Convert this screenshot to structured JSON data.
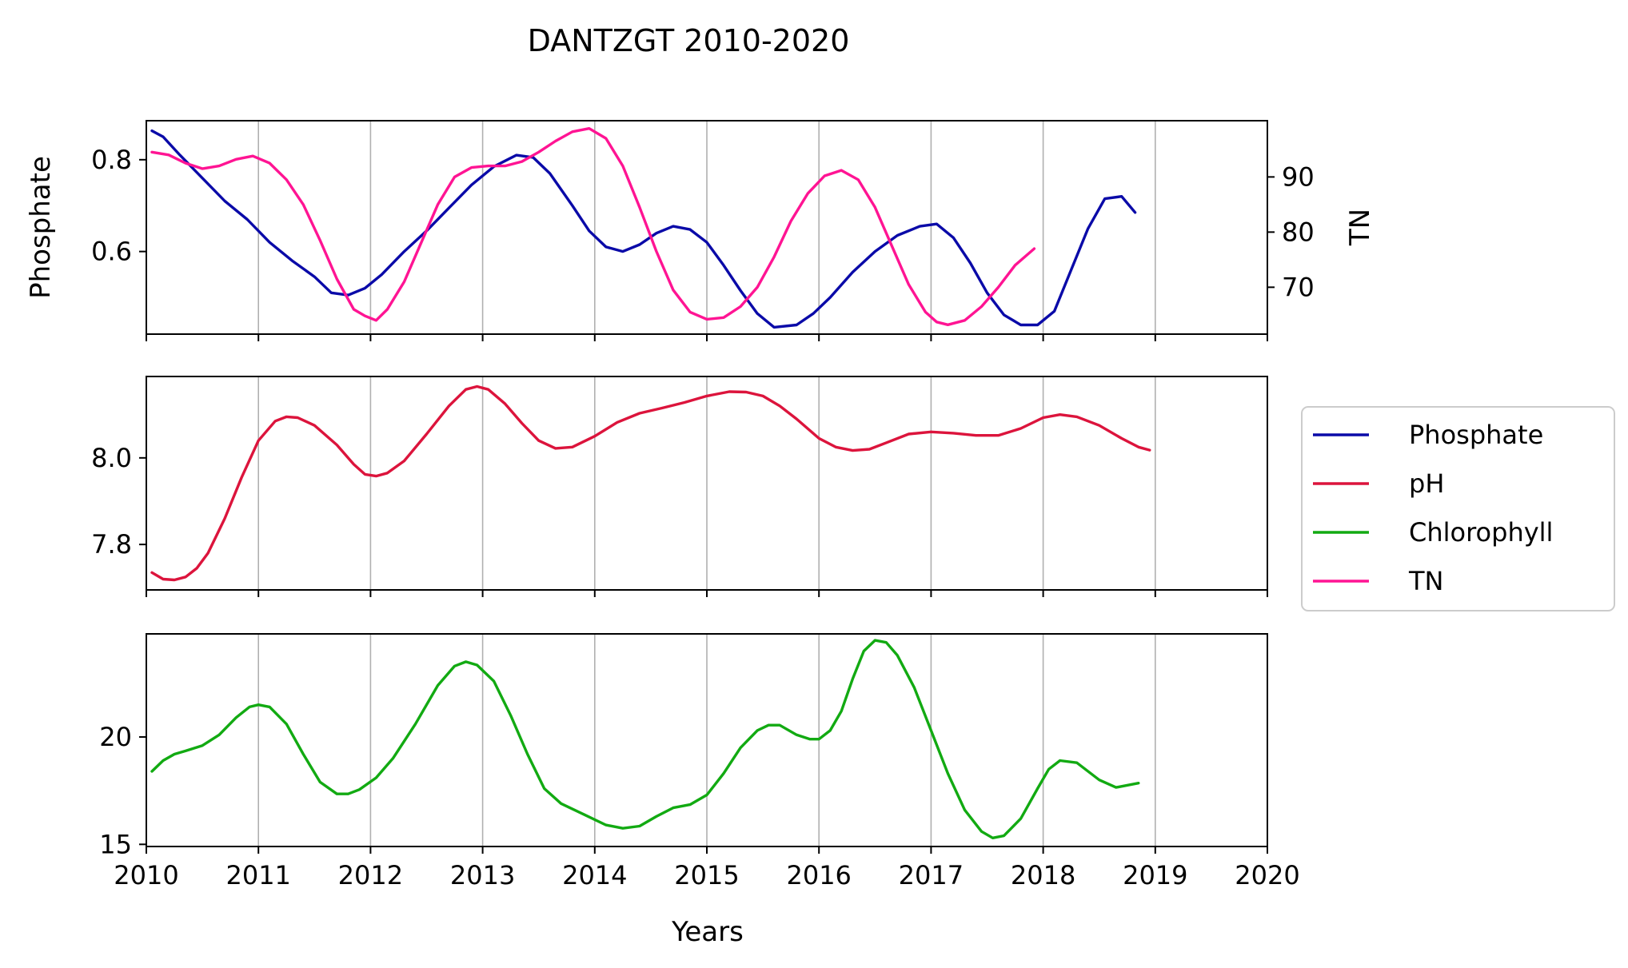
{
  "chart_data": {
    "type": "line",
    "title": "DANTZGT 2010-2020",
    "xlabel": "Years",
    "xlim": [
      2010,
      2020
    ],
    "x_ticks": [
      "2010",
      "2011",
      "2012",
      "2013",
      "2014",
      "2015",
      "2016",
      "2017",
      "2018",
      "2019",
      "2020"
    ],
    "grid": "vertical",
    "legend": {
      "placement": "right",
      "entries": [
        {
          "label": "Phosphate",
          "color": "#0a0aa8"
        },
        {
          "label": "pH",
          "color": "#dc143c"
        },
        {
          "label": "Chlorophyll",
          "color": "#12aa12"
        },
        {
          "label": "TN",
          "color": "#ff1493"
        }
      ]
    },
    "panels": [
      {
        "ylabel": "Phosphate",
        "ylim": [
          0.42,
          0.885
        ],
        "y_ticks": [
          0.6,
          0.8
        ],
        "y_tick_labels": [
          "0.6",
          "0.8"
        ],
        "right_axis": {
          "ylabel": "TN",
          "ylim": [
            61.5,
            100.2
          ],
          "y_ticks": [
            70,
            80,
            90
          ],
          "y_tick_labels": [
            "70",
            "80",
            "90"
          ]
        },
        "series": [
          {
            "name": "Phosphate",
            "axis": "left",
            "color": "#0a0aa8",
            "x": [
              2010.05,
              2010.15,
              2010.3,
              2010.5,
              2010.7,
              2010.9,
              2011.1,
              2011.3,
              2011.5,
              2011.65,
              2011.8,
              2011.95,
              2012.1,
              2012.3,
              2012.5,
              2012.7,
              2012.9,
              2013.1,
              2013.3,
              2013.45,
              2013.6,
              2013.8,
              2013.95,
              2014.1,
              2014.25,
              2014.4,
              2014.55,
              2014.7,
              2014.85,
              2015.0,
              2015.15,
              2015.3,
              2015.45,
              2015.6,
              2015.8,
              2015.95,
              2016.1,
              2016.3,
              2016.5,
              2016.7,
              2016.9,
              2017.05,
              2017.2,
              2017.35,
              2017.5,
              2017.65,
              2017.8,
              2017.95,
              2018.1,
              2018.25,
              2018.4,
              2018.55,
              2018.7,
              2018.82
            ],
            "values": [
              0.863,
              0.85,
              0.81,
              0.76,
              0.71,
              0.67,
              0.62,
              0.58,
              0.545,
              0.51,
              0.505,
              0.52,
              0.55,
              0.6,
              0.645,
              0.695,
              0.745,
              0.785,
              0.81,
              0.805,
              0.77,
              0.7,
              0.645,
              0.61,
              0.6,
              0.615,
              0.64,
              0.655,
              0.648,
              0.62,
              0.57,
              0.515,
              0.465,
              0.435,
              0.44,
              0.465,
              0.5,
              0.555,
              0.6,
              0.635,
              0.655,
              0.66,
              0.63,
              0.575,
              0.51,
              0.462,
              0.44,
              0.44,
              0.47,
              0.56,
              0.65,
              0.715,
              0.72,
              0.685
            ]
          },
          {
            "name": "TN",
            "axis": "right",
            "color": "#ff1493",
            "x": [
              2010.05,
              2010.2,
              2010.35,
              2010.5,
              2010.65,
              2010.8,
              2010.95,
              2011.1,
              2011.25,
              2011.4,
              2011.55,
              2011.7,
              2011.85,
              2011.95,
              2012.05,
              2012.15,
              2012.3,
              2012.45,
              2012.6,
              2012.75,
              2012.9,
              2013.05,
              2013.2,
              2013.35,
              2013.5,
              2013.65,
              2013.8,
              2013.95,
              2014.1,
              2014.25,
              2014.4,
              2014.55,
              2014.7,
              2014.85,
              2015.0,
              2015.15,
              2015.3,
              2015.45,
              2015.6,
              2015.75,
              2015.9,
              2016.05,
              2016.2,
              2016.35,
              2016.5,
              2016.65,
              2016.8,
              2016.95,
              2017.05,
              2017.15,
              2017.3,
              2017.45,
              2017.6,
              2017.75,
              2017.92
            ],
            "values": [
              94.5,
              94.0,
              92.5,
              91.5,
              92.0,
              93.2,
              93.8,
              92.5,
              89.5,
              85.0,
              78.5,
              71.5,
              66.0,
              64.8,
              64.0,
              66.0,
              71.0,
              78.0,
              85.0,
              90.0,
              91.7,
              92.0,
              92.0,
              92.8,
              94.5,
              96.5,
              98.2,
              98.8,
              97.0,
              92.0,
              84.5,
              76.5,
              69.5,
              65.5,
              64.2,
              64.5,
              66.5,
              70.0,
              75.5,
              82.0,
              87.0,
              90.2,
              91.2,
              89.5,
              84.5,
              77.5,
              70.5,
              65.5,
              63.7,
              63.2,
              64.0,
              66.5,
              70.0,
              74.0,
              77.0
            ]
          }
        ]
      },
      {
        "ylabel": "",
        "ylim": [
          7.695,
          8.188
        ],
        "y_ticks": [
          7.8,
          8.0
        ],
        "y_tick_labels": [
          "7.8",
          "8.0"
        ],
        "series": [
          {
            "name": "pH",
            "axis": "left",
            "color": "#dc143c",
            "x": [
              2010.05,
              2010.15,
              2010.25,
              2010.35,
              2010.45,
              2010.55,
              2010.7,
              2010.85,
              2011.0,
              2011.15,
              2011.25,
              2011.35,
              2011.5,
              2011.7,
              2011.85,
              2011.95,
              2012.05,
              2012.15,
              2012.3,
              2012.5,
              2012.7,
              2012.85,
              2012.95,
              2013.05,
              2013.2,
              2013.35,
              2013.5,
              2013.65,
              2013.8,
              2014.0,
              2014.2,
              2014.4,
              2014.6,
              2014.8,
              2015.0,
              2015.2,
              2015.35,
              2015.5,
              2015.65,
              2015.8,
              2016.0,
              2016.15,
              2016.3,
              2016.45,
              2016.6,
              2016.8,
              2017.0,
              2017.2,
              2017.4,
              2017.6,
              2017.8,
              2018.0,
              2018.15,
              2018.3,
              2018.5,
              2018.7,
              2018.85,
              2018.95
            ],
            "values": [
              7.735,
              7.72,
              7.718,
              7.725,
              7.745,
              7.78,
              7.86,
              7.955,
              8.04,
              8.085,
              8.095,
              8.093,
              8.075,
              8.03,
              7.985,
              7.962,
              7.958,
              7.965,
              7.993,
              8.055,
              8.12,
              8.158,
              8.165,
              8.158,
              8.125,
              8.08,
              8.04,
              8.022,
              8.025,
              8.05,
              8.082,
              8.103,
              8.115,
              8.128,
              8.143,
              8.153,
              8.152,
              8.143,
              8.12,
              8.09,
              8.045,
              8.025,
              8.017,
              8.02,
              8.035,
              8.055,
              8.06,
              8.057,
              8.052,
              8.052,
              8.068,
              8.093,
              8.1,
              8.095,
              8.075,
              8.045,
              8.025,
              8.018
            ]
          }
        ]
      },
      {
        "ylabel": "",
        "ylim": [
          14.9,
          24.8
        ],
        "y_ticks": [
          15,
          20
        ],
        "y_tick_labels": [
          "15",
          "20"
        ],
        "series": [
          {
            "name": "Chlorophyll",
            "axis": "left",
            "color": "#12aa12",
            "x": [
              2010.05,
              2010.15,
              2010.25,
              2010.35,
              2010.5,
              2010.65,
              2010.8,
              2010.92,
              2011.0,
              2011.1,
              2011.25,
              2011.4,
              2011.55,
              2011.7,
              2011.8,
              2011.9,
              2012.05,
              2012.2,
              2012.4,
              2012.6,
              2012.75,
              2012.85,
              2012.95,
              2013.1,
              2013.25,
              2013.4,
              2013.55,
              2013.7,
              2013.9,
              2014.1,
              2014.25,
              2014.4,
              2014.55,
              2014.7,
              2014.85,
              2015.0,
              2015.15,
              2015.3,
              2015.45,
              2015.55,
              2015.65,
              2015.8,
              2015.92,
              2016.0,
              2016.1,
              2016.2,
              2016.3,
              2016.4,
              2016.5,
              2016.6,
              2016.7,
              2016.85,
              2017.0,
              2017.15,
              2017.3,
              2017.45,
              2017.55,
              2017.65,
              2017.8,
              2017.95,
              2018.05,
              2018.15,
              2018.3,
              2018.5,
              2018.65,
              2018.85
            ],
            "values": [
              18.4,
              18.9,
              19.2,
              19.35,
              19.6,
              20.1,
              20.9,
              21.4,
              21.5,
              21.4,
              20.6,
              19.2,
              17.9,
              17.35,
              17.35,
              17.55,
              18.1,
              19.0,
              20.6,
              22.4,
              23.3,
              23.5,
              23.35,
              22.6,
              21.0,
              19.2,
              17.6,
              16.9,
              16.4,
              15.9,
              15.75,
              15.85,
              16.3,
              16.7,
              16.85,
              17.3,
              18.3,
              19.5,
              20.3,
              20.55,
              20.55,
              20.1,
              19.9,
              19.9,
              20.3,
              21.2,
              22.7,
              24.0,
              24.5,
              24.4,
              23.8,
              22.3,
              20.3,
              18.3,
              16.6,
              15.6,
              15.3,
              15.4,
              16.2,
              17.6,
              18.5,
              18.9,
              18.8,
              18.0,
              17.65,
              17.85
            ]
          }
        ]
      }
    ]
  }
}
